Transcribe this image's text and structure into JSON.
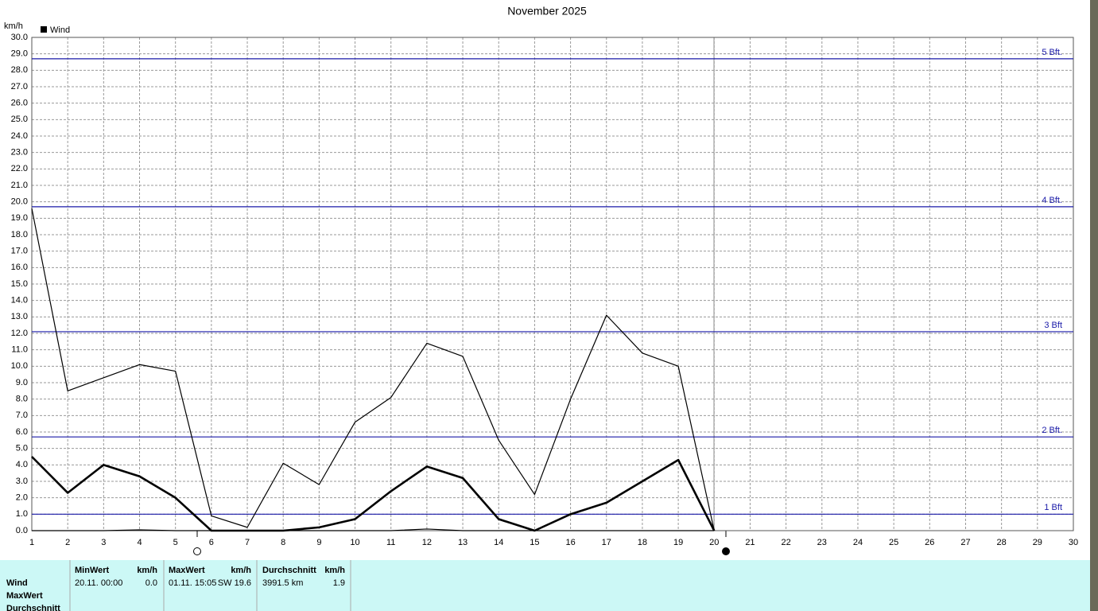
{
  "chart_data": {
    "type": "line",
    "title": "November 2025",
    "y_label": "km/h",
    "x": [
      1,
      2,
      3,
      4,
      5,
      6,
      7,
      8,
      9,
      10,
      11,
      12,
      13,
      14,
      15,
      16,
      17,
      18,
      19,
      20,
      21,
      22,
      23,
      24,
      25,
      26,
      27,
      28,
      29,
      30
    ],
    "series": [
      {
        "name": "Wind",
        "color": "#000000",
        "width": 1.2,
        "values": [
          19.6,
          8.5,
          9.3,
          10.1,
          9.7,
          0.9,
          0.2,
          4.1,
          2.8,
          6.6,
          8.1,
          11.4,
          10.6,
          5.5,
          2.2,
          8.0,
          13.1,
          10.8,
          10.0,
          0.0,
          null,
          null,
          null,
          null,
          null,
          null,
          null,
          null,
          null,
          null
        ]
      },
      {
        "color": "#000000",
        "width": 2.6,
        "values": [
          4.5,
          2.3,
          4.0,
          3.3,
          2.0,
          0.0,
          0.0,
          0.0,
          0.2,
          0.7,
          2.4,
          3.9,
          3.2,
          0.7,
          0.0,
          1.0,
          1.7,
          3.0,
          4.3,
          0.0,
          null,
          null,
          null,
          null,
          null,
          null,
          null,
          null,
          null,
          null
        ]
      },
      {
        "color": "#000000",
        "width": 1.2,
        "values": [
          0.0,
          0.0,
          0.0,
          0.05,
          0.0,
          0.0,
          0.0,
          0.0,
          0.0,
          0.0,
          0.0,
          0.1,
          0.0,
          0.0,
          0.0,
          0.0,
          0.0,
          0.0,
          0.0,
          0.0,
          null,
          null,
          null,
          null,
          null,
          null,
          null,
          null,
          null,
          null
        ]
      }
    ],
    "xlim": [
      1,
      30
    ],
    "xticks": [
      1,
      2,
      3,
      4,
      5,
      6,
      7,
      8,
      9,
      10,
      11,
      12,
      13,
      14,
      15,
      16,
      17,
      18,
      19,
      20,
      21,
      22,
      23,
      24,
      25,
      26,
      27,
      28,
      29,
      30
    ],
    "ylim": [
      0,
      30
    ],
    "yticks": [
      {
        "value": 0,
        "label": "0.0"
      },
      {
        "value": 1,
        "label": "1.0"
      },
      {
        "value": 2,
        "label": "2.0"
      },
      {
        "value": 3,
        "label": "3.0"
      },
      {
        "value": 4,
        "label": "4.0"
      },
      {
        "value": 5,
        "label": "5.0"
      },
      {
        "value": 6,
        "label": "6.0"
      },
      {
        "value": 7,
        "label": "7.0"
      },
      {
        "value": 8,
        "label": "8.0"
      },
      {
        "value": 9,
        "label": "9.0"
      },
      {
        "value": 10,
        "label": "10.0"
      },
      {
        "value": 11,
        "label": "11.0"
      },
      {
        "value": 12,
        "label": "12.0"
      },
      {
        "value": 13,
        "label": "13.0"
      },
      {
        "value": 14,
        "label": "14.0"
      },
      {
        "value": 15,
        "label": "15.0"
      },
      {
        "value": 16,
        "label": "16.0"
      },
      {
        "value": 17,
        "label": "17.0"
      },
      {
        "value": 18,
        "label": "18.0"
      },
      {
        "value": 19,
        "label": "19.0"
      },
      {
        "value": 20,
        "label": "20.0"
      },
      {
        "value": 21,
        "label": "21.0"
      },
      {
        "value": 22,
        "label": "22.0"
      },
      {
        "value": 23,
        "label": "23.0"
      },
      {
        "value": 24,
        "label": "24.0"
      },
      {
        "value": 25,
        "label": "25.0"
      },
      {
        "value": 26,
        "label": "26.0"
      },
      {
        "value": 27,
        "label": "27.0"
      },
      {
        "value": 28,
        "label": "28.0"
      },
      {
        "value": 29,
        "label": "29.0"
      },
      {
        "value": 30,
        "label": "30.0"
      }
    ],
    "grid": true,
    "reference_lines": [
      {
        "value": 1.0,
        "label": "1 Bft"
      },
      {
        "value": 5.7,
        "label": "2 Bft."
      },
      {
        "value": 12.1,
        "label": "3 Bft"
      },
      {
        "value": 19.7,
        "label": "4 Bft."
      },
      {
        "value": 28.7,
        "label": "5 Bft."
      }
    ],
    "reference_color": "#1a1aa8"
  },
  "table": {
    "row_labels": [
      "Wind",
      "MaxWert",
      "Durchschnitt"
    ],
    "columns": [
      {
        "header": "MinWert",
        "unit": "km/h",
        "cells": [
          "20.11.  00:00",
          "0.0"
        ]
      },
      {
        "header": "MaxWert",
        "unit": "km/h",
        "cells": [
          "01.11.  15:05",
          "SW 19.6"
        ]
      },
      {
        "header": "Durchschnitt",
        "unit": "km/h",
        "cells": [
          "3991.5 km",
          "1.9"
        ]
      }
    ]
  }
}
